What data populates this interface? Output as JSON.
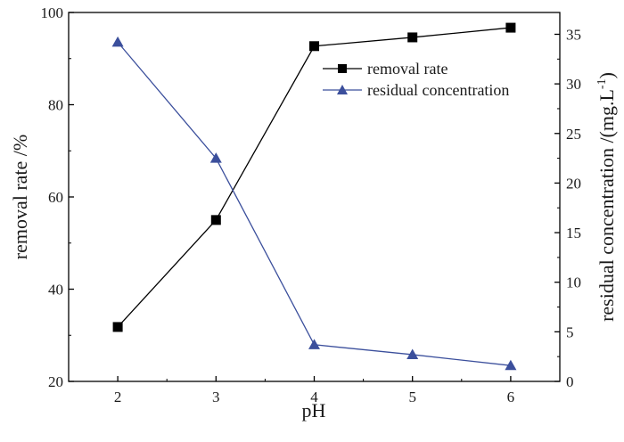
{
  "chart_data": {
    "type": "line",
    "x": [
      2,
      3,
      4,
      5,
      6
    ],
    "xlabel": "pH",
    "xlim": [
      1.5,
      6.5
    ],
    "xticks": [
      "2",
      "3",
      "4",
      "5",
      "6"
    ],
    "left_axis": {
      "label": "removal rate /%",
      "ylim": [
        20,
        100
      ],
      "ticks": [
        "20",
        "40",
        "60",
        "80",
        "100"
      ]
    },
    "right_axis": {
      "label": "residual concentration /(mg.L",
      "label_sup": "-1",
      "label_end": ")",
      "ylim": [
        0,
        37.2
      ],
      "ticks": [
        "0",
        "5",
        "10",
        "15",
        "20",
        "25",
        "30",
        "35"
      ]
    },
    "series": [
      {
        "name": "removal rate",
        "axis": "left",
        "marker": "square",
        "color": "#000000",
        "values": [
          31.8,
          55.0,
          92.7,
          94.6,
          96.7
        ]
      },
      {
        "name": "residual concentration",
        "axis": "right",
        "marker": "triangle",
        "color": "#3b4f9c",
        "values": [
          34.2,
          22.5,
          3.7,
          2.7,
          1.6
        ]
      }
    ],
    "legend_position": "top-right"
  }
}
